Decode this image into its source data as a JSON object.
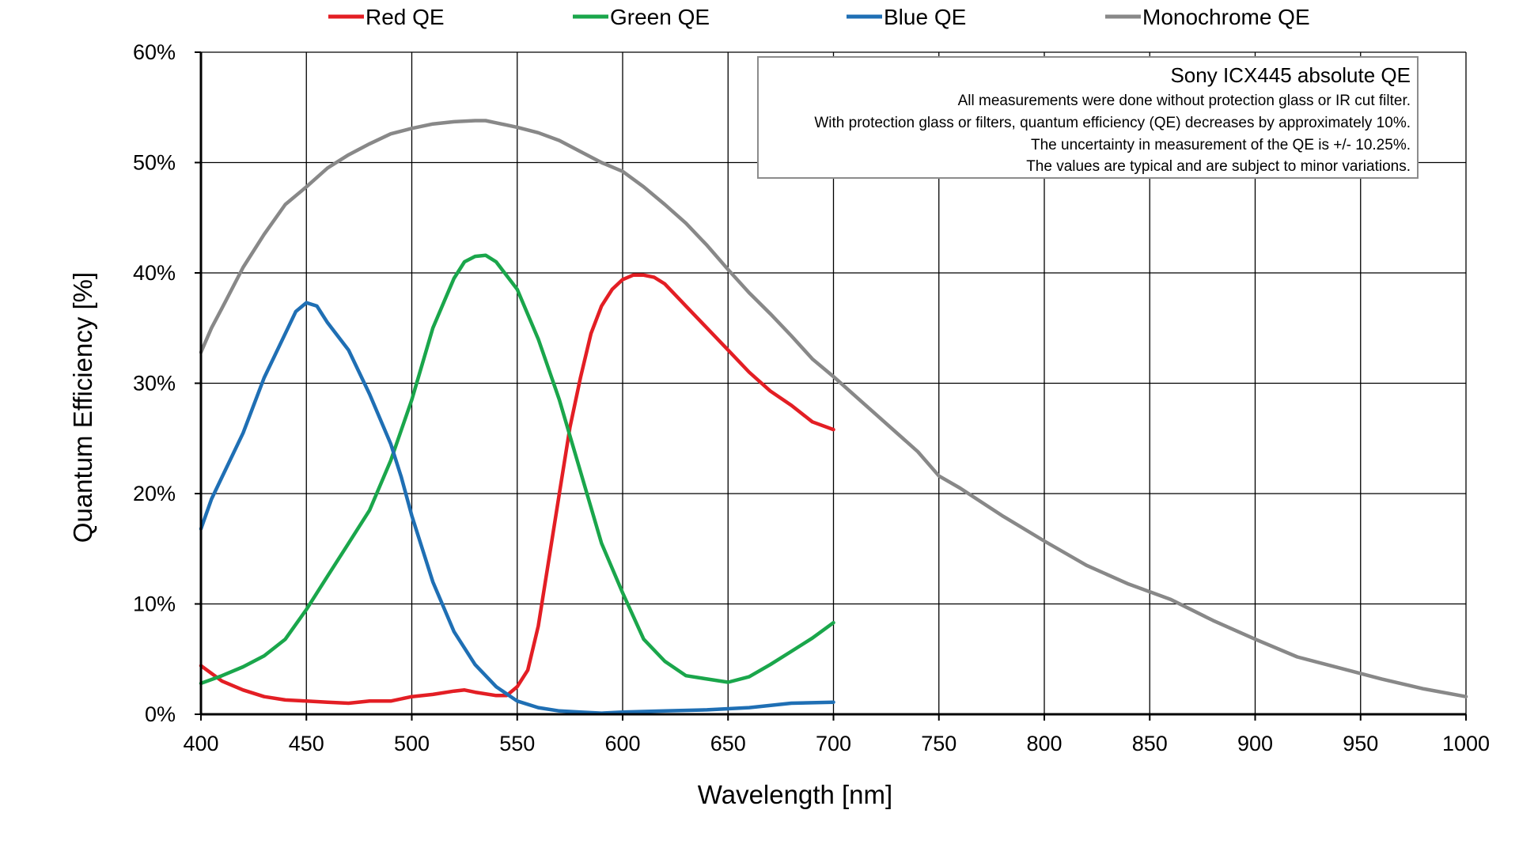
{
  "chart_data": {
    "type": "line",
    "xlabel": "Wavelength [nm]",
    "ylabel": "Quantum Efficiency [%]",
    "xlim": [
      400,
      1000
    ],
    "ylim": [
      0,
      60
    ],
    "x_ticks": [
      400,
      450,
      500,
      550,
      600,
      650,
      700,
      750,
      800,
      850,
      900,
      950,
      1000
    ],
    "x_tick_labels": [
      "400",
      "450",
      "500",
      "550",
      "600",
      "650",
      "700",
      "750",
      "800",
      "850",
      "900",
      "950",
      "1000"
    ],
    "y_ticks": [
      0,
      10,
      20,
      30,
      40,
      50,
      60
    ],
    "y_tick_labels": [
      "0%",
      "10%",
      "20%",
      "30%",
      "40%",
      "50%",
      "60%"
    ],
    "grid": true,
    "legend_position": "top",
    "annotation": {
      "title": "Sony ICX445 absolute QE",
      "lines": [
        "All measurements were done without protection glass or IR cut filter.",
        "With protection glass or filters, quantum efficiency (QE) decreases by approximately 10%.",
        "The uncertainty in measurement of the QE is +/- 10.25%.",
        "The values are typical and are subject to minor variations."
      ]
    },
    "series": [
      {
        "name": "Red QE",
        "color": "#e31e24",
        "x": [
          400,
          410,
          420,
          430,
          440,
          450,
          460,
          470,
          480,
          490,
          500,
          510,
          520,
          525,
          530,
          540,
          545,
          550,
          555,
          560,
          565,
          570,
          575,
          580,
          585,
          590,
          595,
          600,
          605,
          610,
          615,
          620,
          630,
          640,
          650,
          660,
          670,
          680,
          690,
          700
        ],
        "values": [
          4.4,
          3.0,
          2.2,
          1.6,
          1.3,
          1.2,
          1.1,
          1.0,
          1.2,
          1.2,
          1.6,
          1.8,
          2.1,
          2.2,
          2.0,
          1.7,
          1.7,
          2.5,
          4.0,
          8.0,
          14.0,
          20.0,
          26.0,
          30.5,
          34.5,
          37.0,
          38.5,
          39.4,
          39.8,
          39.8,
          39.6,
          39.0,
          37.0,
          35.0,
          33.0,
          31.0,
          29.3,
          28.0,
          26.5,
          25.8
        ]
      },
      {
        "name": "Green QE",
        "color": "#1aa64b",
        "x": [
          400,
          410,
          420,
          430,
          440,
          450,
          460,
          470,
          480,
          490,
          500,
          510,
          520,
          525,
          530,
          535,
          540,
          550,
          560,
          570,
          580,
          590,
          600,
          610,
          620,
          630,
          640,
          650,
          660,
          670,
          680,
          690,
          700
        ],
        "values": [
          2.8,
          3.5,
          4.3,
          5.3,
          6.8,
          9.5,
          12.5,
          15.5,
          18.5,
          23.0,
          28.5,
          35.0,
          39.5,
          41.0,
          41.5,
          41.6,
          41.0,
          38.5,
          34.0,
          28.5,
          22.0,
          15.5,
          11.0,
          6.8,
          4.8,
          3.5,
          3.2,
          2.9,
          3.4,
          4.5,
          5.7,
          6.9,
          8.3
        ]
      },
      {
        "name": "Blue QE",
        "color": "#1f6fb4",
        "x": [
          400,
          405,
          410,
          420,
          430,
          440,
          445,
          450,
          455,
          460,
          470,
          480,
          490,
          495,
          500,
          510,
          520,
          530,
          540,
          550,
          560,
          570,
          580,
          590,
          600,
          620,
          640,
          660,
          680,
          700
        ],
        "values": [
          16.8,
          19.5,
          21.5,
          25.5,
          30.5,
          34.5,
          36.5,
          37.3,
          37.0,
          35.5,
          33.0,
          29.0,
          24.5,
          21.5,
          18.0,
          12.0,
          7.5,
          4.5,
          2.5,
          1.2,
          0.6,
          0.3,
          0.2,
          0.1,
          0.2,
          0.3,
          0.4,
          0.6,
          1.0,
          1.1
        ]
      },
      {
        "name": "Monochrome QE",
        "color": "#888888",
        "x": [
          400,
          405,
          410,
          420,
          430,
          440,
          450,
          460,
          470,
          480,
          490,
          500,
          510,
          520,
          530,
          535,
          540,
          550,
          560,
          570,
          580,
          590,
          600,
          610,
          620,
          630,
          640,
          650,
          660,
          670,
          680,
          690,
          700,
          720,
          740,
          750,
          760,
          780,
          800,
          820,
          840,
          860,
          880,
          900,
          920,
          940,
          960,
          980,
          1000
        ],
        "values": [
          32.8,
          35.0,
          36.8,
          40.5,
          43.5,
          46.2,
          47.8,
          49.5,
          50.7,
          51.7,
          52.6,
          53.1,
          53.5,
          53.7,
          53.8,
          53.8,
          53.6,
          53.2,
          52.7,
          52.0,
          51.0,
          50.0,
          49.2,
          47.8,
          46.2,
          44.5,
          42.5,
          40.3,
          38.2,
          36.3,
          34.3,
          32.2,
          30.6,
          27.2,
          23.8,
          21.6,
          20.5,
          18.0,
          15.7,
          13.5,
          11.8,
          10.4,
          8.5,
          6.8,
          5.2,
          4.2,
          3.2,
          2.3,
          1.6
        ]
      }
    ]
  }
}
